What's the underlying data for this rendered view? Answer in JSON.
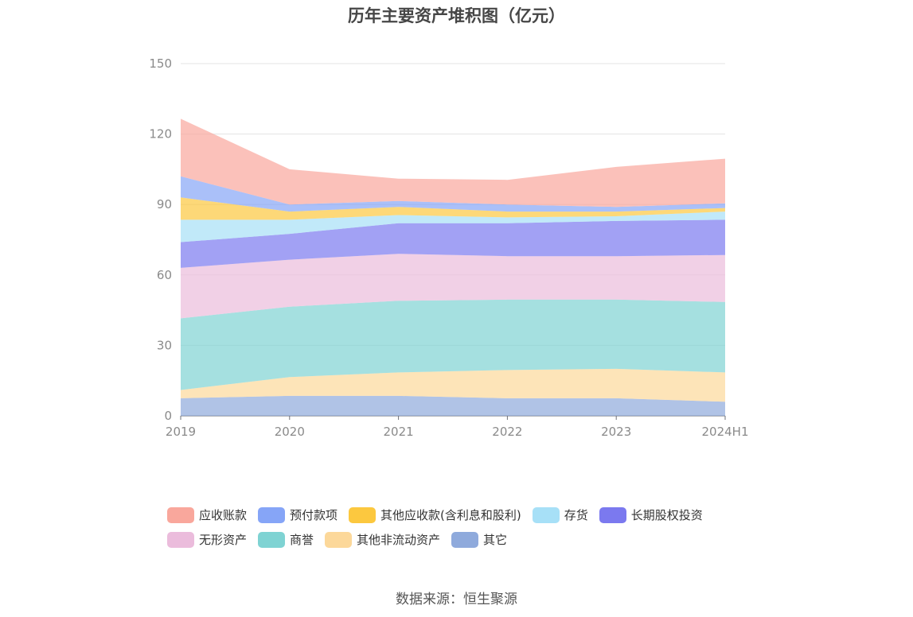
{
  "chart_data": {
    "type": "area",
    "stacked": true,
    "title": "历年主要资产堆积图（亿元）",
    "categories": [
      "2019",
      "2020",
      "2021",
      "2022",
      "2023",
      "2024H1"
    ],
    "ylim": [
      0,
      150
    ],
    "yticks": [
      0,
      30,
      60,
      90,
      120,
      150
    ],
    "grid": true,
    "legend_position": "bottom",
    "series": [
      {
        "name": "其它",
        "color": "#8faadc",
        "values": [
          7.5,
          8.5,
          8.5,
          7.5,
          7.5,
          6
        ]
      },
      {
        "name": "其他非流动资产",
        "color": "#fcd89a",
        "values": [
          3.5,
          8,
          10,
          12,
          12.5,
          12.5
        ]
      },
      {
        "name": "商誉",
        "color": "#7fd3d3",
        "values": [
          30.5,
          30,
          30.5,
          30,
          29.5,
          30
        ]
      },
      {
        "name": "无形资产",
        "color": "#ebbcdc",
        "values": [
          21.5,
          20,
          20,
          18.5,
          18.5,
          20
        ]
      },
      {
        "name": "长期股权投资",
        "color": "#7b79ef",
        "values": [
          11,
          11,
          13,
          14,
          15,
          15
        ]
      },
      {
        "name": "存货",
        "color": "#a7e0f7",
        "values": [
          9.5,
          6,
          3.5,
          2.5,
          2,
          3.5
        ]
      },
      {
        "name": "其他应收款(含利息和股利)",
        "color": "#fcc83f",
        "values": [
          9.5,
          3.5,
          3.5,
          2.5,
          2,
          1.5
        ]
      },
      {
        "name": "预付款项",
        "color": "#86a5f7",
        "values": [
          9,
          3,
          2.5,
          3,
          2,
          2
        ]
      },
      {
        "name": "应收账款",
        "color": "#f9a79c",
        "values": [
          24.5,
          15,
          9.5,
          10.5,
          17,
          19
        ]
      }
    ]
  },
  "legend_order": [
    "应收账款",
    "预付款项",
    "其他应收款(含利息和股利)",
    "存货",
    "长期股权投资",
    "无形资产",
    "商誉",
    "其他非流动资产",
    "其它"
  ],
  "source": "数据来源：恒生聚源"
}
